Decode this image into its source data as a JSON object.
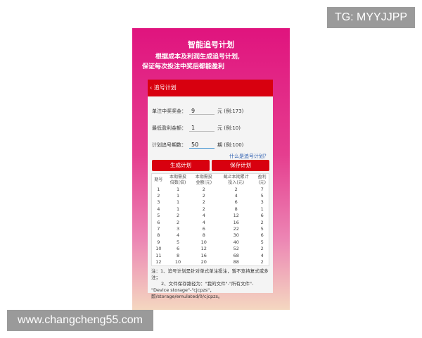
{
  "watermarks": {
    "top": "TG: MYYJJPP",
    "bottom": "www.changcheng55.com"
  },
  "banner": {
    "title": "智能追号计划",
    "line1": "根据成本及利润生成追号计划,",
    "line2": "保证每次投注中奖后都能盈利"
  },
  "header": {
    "back_icon": "chevron-left",
    "title": "追号计划"
  },
  "form": [
    {
      "label": "单注中奖奖金：",
      "value": "9",
      "hint": "元 (例:173)"
    },
    {
      "label": "最低盈利金额：",
      "value": "1",
      "hint": "元 (例:10)"
    },
    {
      "label": "计划追号期数：",
      "value": "50",
      "hint": "期 (例:100)"
    }
  ],
  "help_link": "什么是追号计划？",
  "buttons": {
    "generate": "生成计划",
    "save": "保存计划"
  },
  "table": {
    "headers": [
      "期号",
      "本期需投\n倍数(倍)",
      "本期需投\n金额(元)",
      "截止本期累计\n投入(元)",
      "盈利\n(元)"
    ],
    "rows": [
      [
        "1",
        "1",
        "2",
        "2",
        "7"
      ],
      [
        "2",
        "1",
        "2",
        "4",
        "5"
      ],
      [
        "3",
        "1",
        "2",
        "6",
        "3"
      ],
      [
        "4",
        "1",
        "2",
        "8",
        "1"
      ],
      [
        "5",
        "2",
        "4",
        "12",
        "6"
      ],
      [
        "6",
        "2",
        "4",
        "16",
        "2"
      ],
      [
        "7",
        "3",
        "6",
        "22",
        "5"
      ],
      [
        "8",
        "4",
        "8",
        "30",
        "6"
      ],
      [
        "9",
        "5",
        "10",
        "40",
        "5"
      ],
      [
        "10",
        "6",
        "12",
        "52",
        "2"
      ],
      [
        "11",
        "8",
        "16",
        "68",
        "4"
      ],
      [
        "12",
        "10",
        "20",
        "88",
        "2"
      ]
    ]
  },
  "notes": {
    "n1": "注：1、追号计划是针对单式单注投注，暂不支持复式或多注；",
    "n2": "2、文件保存路径为：\"我的文件\"-\"所有文件\"-\"Device storage\"-\"cjcpzs\"，即/storage/emulated/0/cjcpzs。"
  },
  "colors": {
    "accent": "#d8000f",
    "link": "#2a5db0"
  }
}
